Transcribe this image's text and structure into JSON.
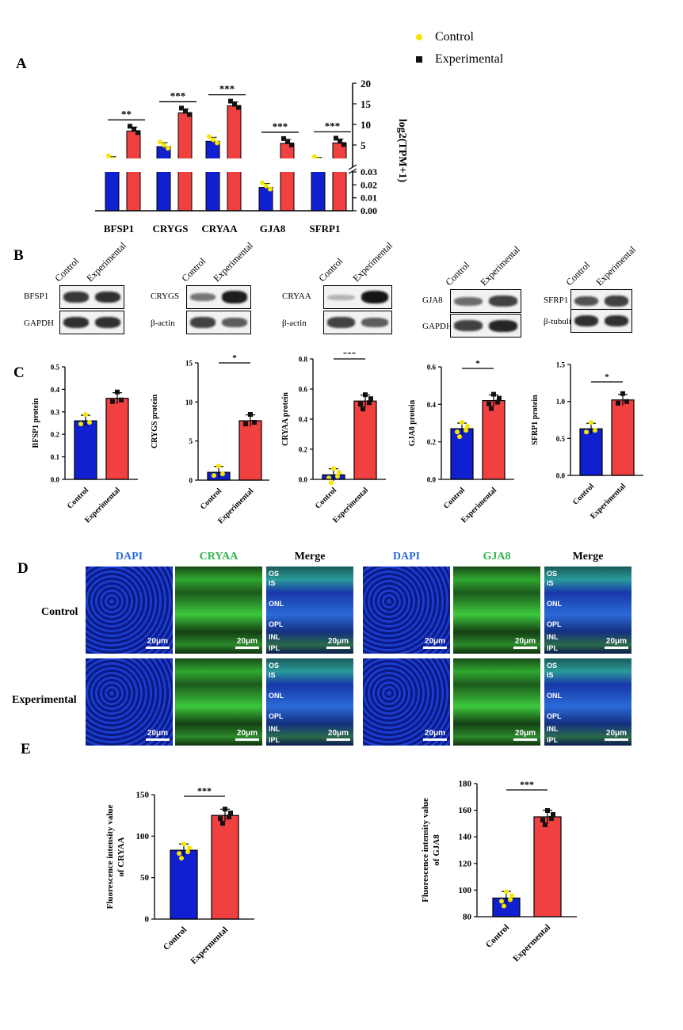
{
  "panel_letters": {
    "A": "A",
    "B": "B",
    "C": "C",
    "D": "D",
    "E": "E"
  },
  "legend": {
    "control": "Control",
    "experimental": "Experimental",
    "control_color": "#f5e600",
    "experimental_color": "#111111"
  },
  "colors": {
    "control_bar": "#1020d0",
    "experimental_bar": "#f04040",
    "green_stain": "#3cc83c",
    "blue_stain": "#2030c0"
  },
  "chart_data": [
    {
      "id": "A",
      "type": "bar",
      "ylabel": "log2(TPM+1)",
      "categories": [
        "BFSP1",
        "CRYGS",
        "CRYAA",
        "GJA8",
        "SFRP1"
      ],
      "axis_break": {
        "lower_range": [
          0,
          0.03
        ],
        "upper_range": [
          0,
          20
        ]
      },
      "upper_ticks": [
        "5",
        "10",
        "15",
        "20"
      ],
      "lower_ticks": [
        "0.00",
        "0.01",
        "0.02",
        "0.03"
      ],
      "series": [
        {
          "name": "Control",
          "values": [
            1.2,
            4.6,
            5.9,
            0.018,
            1.0
          ]
        },
        {
          "name": "Experimental",
          "values": [
            8.4,
            12.8,
            14.5,
            5.4,
            5.5
          ]
        }
      ],
      "significance": [
        "**",
        "***",
        "***",
        "***",
        "***"
      ]
    },
    {
      "id": "C1",
      "type": "bar",
      "ylabel": "BFSP1 protein",
      "categories": [
        "Control",
        "Experimental"
      ],
      "values": [
        0.26,
        0.36
      ],
      "ylim": [
        0,
        0.5
      ],
      "ticks": [
        "0.0",
        "0.1",
        "0.2",
        "0.3",
        "0.4",
        "0.5"
      ],
      "significance": ""
    },
    {
      "id": "C2",
      "type": "bar",
      "ylabel": "CRYGS protein",
      "categories": [
        "Control",
        "Experimental"
      ],
      "values": [
        1.0,
        7.6
      ],
      "ylim": [
        0,
        15
      ],
      "ticks": [
        "0",
        "5",
        "10",
        "15"
      ],
      "significance": "*"
    },
    {
      "id": "C3",
      "type": "bar",
      "ylabel": "CRYAA protein",
      "categories": [
        "Control",
        "Experimental"
      ],
      "values": [
        0.03,
        0.52
      ],
      "ylim": [
        0,
        0.8
      ],
      "ticks": [
        "0.0",
        "0.2",
        "0.4",
        "0.6",
        "0.8"
      ],
      "significance": "***"
    },
    {
      "id": "C4",
      "type": "bar",
      "ylabel": "GJA8 protein",
      "categories": [
        "Control",
        "Experimental"
      ],
      "values": [
        0.27,
        0.42
      ],
      "ylim": [
        0,
        0.6
      ],
      "ticks": [
        "0.0",
        "0.2",
        "0.4",
        "0.6"
      ],
      "significance": "*"
    },
    {
      "id": "C5",
      "type": "bar",
      "ylabel": "SFRP1 protein",
      "categories": [
        "Control",
        "Experimental"
      ],
      "values": [
        0.63,
        1.02
      ],
      "ylim": [
        0,
        1.5
      ],
      "ticks": [
        "0.0",
        "0.5",
        "1.0",
        "1.5"
      ],
      "significance": "*"
    },
    {
      "id": "E1",
      "type": "bar",
      "ylabel": "Fluorescence intensity value of CRYAA",
      "categories": [
        "Control",
        "Expermental"
      ],
      "values": [
        83,
        125
      ],
      "ylim": [
        0,
        150
      ],
      "ticks": [
        "0",
        "50",
        "100",
        "150"
      ],
      "significance": "***"
    },
    {
      "id": "E2",
      "type": "bar",
      "ylabel": "Fluorescence intensity value of GJA8",
      "categories": [
        "Control",
        "Expermental"
      ],
      "values": [
        94,
        155
      ],
      "ylim": [
        80,
        180
      ],
      "ticks": [
        "80",
        "100",
        "120",
        "140",
        "160",
        "180"
      ],
      "significance": "***"
    }
  ],
  "blots": [
    {
      "top": "BFSP1",
      "bottom": "GAPDH",
      "lane1": "Control",
      "lane2": "Experimental"
    },
    {
      "top": "CRYGS",
      "bottom": "β-actin",
      "lane1": "Control",
      "lane2": "Experimental"
    },
    {
      "top": "CRYAA",
      "bottom": "β-actin",
      "lane1": "Control",
      "lane2": "Experimental"
    },
    {
      "top": "GJA8",
      "bottom": "GAPDH",
      "lane1": "Control",
      "lane2": "Experimental"
    },
    {
      "top": "SFRP1",
      "bottom": "β-tubulin",
      "lane1": "Control",
      "lane2": "Experimental"
    }
  ],
  "micrographs": {
    "titles_left": [
      "DAPI",
      "CRYAA",
      "Merge"
    ],
    "titles_right": [
      "DAPI",
      "GJA8",
      "Merge"
    ],
    "rows": [
      "Control",
      "Experimental"
    ],
    "scale": "20μm",
    "layers": [
      "OS",
      "IS",
      "ONL",
      "OPL",
      "INL",
      "IPL"
    ]
  }
}
